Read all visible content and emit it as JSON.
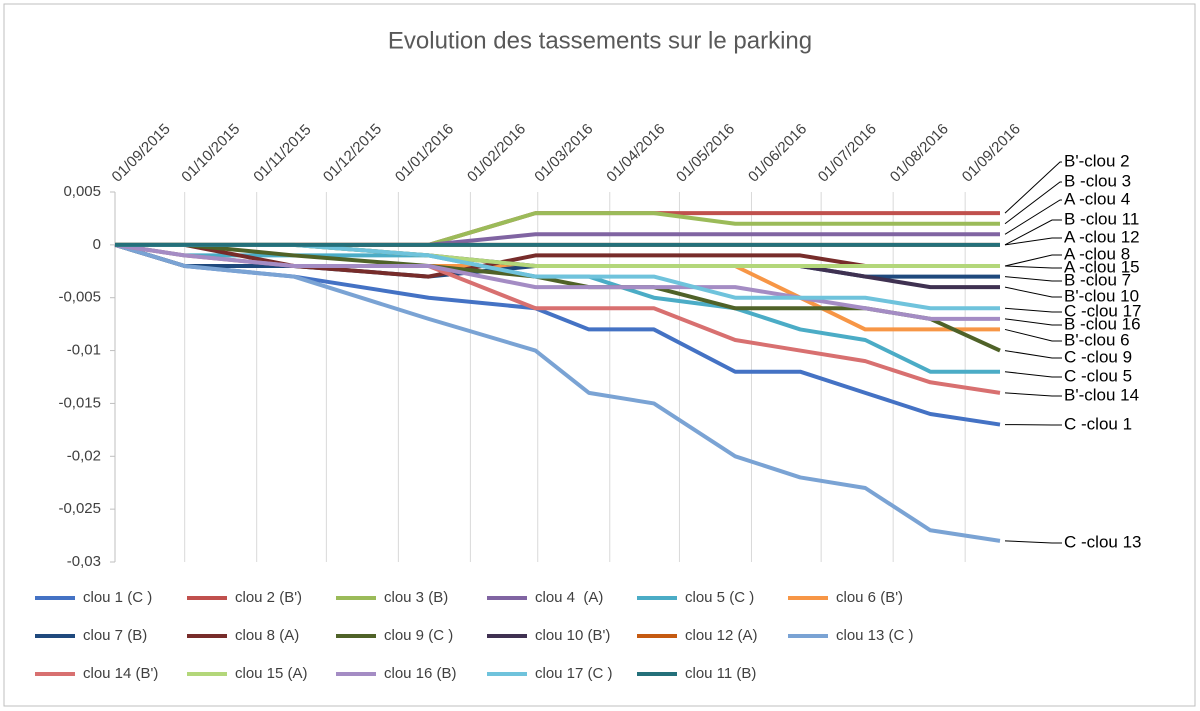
{
  "chart_data": {
    "type": "line",
    "title": "Evolution des tassements sur le parking",
    "x": [
      "2015-09-01",
      "2015-10-01",
      "2015-11-17",
      "2016-01-14",
      "2016-02-29",
      "2016-03-23",
      "2016-04-20",
      "2016-05-25",
      "2016-06-22",
      "2016-07-20",
      "2016-08-17",
      "2016-09-16"
    ],
    "xlim": [
      "2015-09-01",
      "2016-09-16"
    ],
    "xticks": [
      {
        "value": "2015-09-01",
        "label": "01/09/2015"
      },
      {
        "value": "2015-10-01",
        "label": "01/10/2015"
      },
      {
        "value": "2015-11-01",
        "label": "01/11/2015"
      },
      {
        "value": "2015-12-01",
        "label": "01/12/2015"
      },
      {
        "value": "2016-01-01",
        "label": "01/01/2016"
      },
      {
        "value": "2016-02-01",
        "label": "01/02/2016"
      },
      {
        "value": "2016-03-01",
        "label": "01/03/2016"
      },
      {
        "value": "2016-04-01",
        "label": "01/04/2016"
      },
      {
        "value": "2016-05-01",
        "label": "01/05/2016"
      },
      {
        "value": "2016-06-01",
        "label": "01/06/2016"
      },
      {
        "value": "2016-07-01",
        "label": "01/07/2016"
      },
      {
        "value": "2016-08-01",
        "label": "01/08/2016"
      },
      {
        "value": "2016-09-01",
        "label": "01/09/2016"
      }
    ],
    "ylim": [
      -0.03,
      0.005
    ],
    "yticks": [
      {
        "value": 0.005,
        "label": "0,005"
      },
      0,
      {
        "value": -0.005,
        "label": "-0,005"
      },
      {
        "value": -0.01,
        "label": "-0,01"
      },
      {
        "value": -0.015,
        "label": "-0,015"
      },
      {
        "value": -0.02,
        "label": "-0,02"
      },
      {
        "value": -0.025,
        "label": "-0,025"
      },
      {
        "value": -0.03,
        "label": "-0,03"
      }
    ],
    "grid": true,
    "series": [
      {
        "name": "clou 1 (C )",
        "color": "#4472c4",
        "values": [
          0,
          -0.002,
          -0.003,
          -0.005,
          -0.006,
          -0.008,
          -0.008,
          -0.012,
          -0.012,
          -0.014,
          -0.016,
          -0.017
        ]
      },
      {
        "name": "clou 2 (B')",
        "color": "#c0504d",
        "values": [
          0,
          0,
          0,
          0,
          0.003,
          0.003,
          0.003,
          0.003,
          0.003,
          0.003,
          0.003,
          0.003
        ]
      },
      {
        "name": "clou 3 (B)",
        "color": "#9bbb59",
        "values": [
          0,
          0,
          0,
          0,
          0.003,
          0.003,
          0.003,
          0.002,
          0.002,
          0.002,
          0.002,
          0.002
        ]
      },
      {
        "name": "clou 4  (A)",
        "color": "#8064a2",
        "values": [
          0,
          0,
          0,
          0,
          0.001,
          0.001,
          0.001,
          0.001,
          0.001,
          0.001,
          0.001,
          0.001
        ]
      },
      {
        "name": "clou 5 (C )",
        "color": "#4bacc6",
        "values": [
          0,
          -0.001,
          -0.001,
          -0.001,
          -0.003,
          -0.003,
          -0.005,
          -0.006,
          -0.008,
          -0.009,
          -0.012,
          -0.012
        ]
      },
      {
        "name": "clou 6 (B')",
        "color": "#f79646",
        "values": [
          0,
          -0.002,
          -0.002,
          -0.002,
          -0.002,
          -0.002,
          -0.002,
          -0.002,
          -0.005,
          -0.008,
          -0.008,
          -0.008
        ]
      },
      {
        "name": "clou 7 (B)",
        "color": "#1f497d",
        "values": [
          0,
          -0.002,
          -0.002,
          -0.003,
          -0.002,
          -0.002,
          -0.002,
          -0.002,
          -0.002,
          -0.003,
          -0.003,
          -0.003
        ]
      },
      {
        "name": "clou 8 (A)",
        "color": "#772c2a",
        "values": [
          0,
          0,
          -0.002,
          -0.003,
          -0.001,
          -0.001,
          -0.001,
          -0.001,
          -0.001,
          -0.002,
          -0.002,
          -0.002
        ]
      },
      {
        "name": "clou 9 (C )",
        "color": "#4f6228",
        "values": [
          0,
          0,
          -0.001,
          -0.002,
          -0.003,
          -0.004,
          -0.004,
          -0.006,
          -0.006,
          -0.006,
          -0.007,
          -0.01
        ]
      },
      {
        "name": "clou 10 (B')",
        "color": "#3f3151",
        "values": [
          0,
          0,
          0,
          -0.001,
          -0.002,
          -0.002,
          -0.002,
          -0.002,
          -0.002,
          -0.003,
          -0.004,
          -0.004
        ]
      },
      {
        "name": "clou 12 (A)",
        "color": "#c55a11",
        "values": [
          0,
          0,
          0,
          0,
          0,
          0,
          0,
          0,
          0,
          0,
          0,
          0
        ]
      },
      {
        "name": "clou 13 (C )",
        "color": "#7aa3d4",
        "values": [
          0,
          -0.002,
          -0.003,
          -0.007,
          -0.01,
          -0.014,
          -0.015,
          -0.02,
          -0.022,
          -0.023,
          -0.027,
          -0.028
        ]
      },
      {
        "name": "clou 14 (B')",
        "color": "#d87070",
        "values": [
          0,
          -0.001,
          -0.002,
          -0.002,
          -0.006,
          -0.006,
          -0.006,
          -0.009,
          -0.01,
          -0.011,
          -0.013,
          -0.014
        ]
      },
      {
        "name": "clou 15 (A)",
        "color": "#b3d77a",
        "values": [
          0,
          0,
          0,
          -0.001,
          -0.002,
          -0.002,
          -0.002,
          -0.002,
          -0.002,
          -0.002,
          -0.002,
          -0.002
        ]
      },
      {
        "name": "clou 16 (B)",
        "color": "#a48cc4",
        "values": [
          0,
          -0.001,
          -0.002,
          -0.002,
          -0.004,
          -0.004,
          -0.004,
          -0.004,
          -0.005,
          -0.006,
          -0.007,
          -0.007
        ]
      },
      {
        "name": "clou 17 (C )",
        "color": "#6fc3dc",
        "values": [
          0,
          0,
          0,
          -0.001,
          -0.003,
          -0.003,
          -0.003,
          -0.005,
          -0.005,
          -0.005,
          -0.006,
          -0.006
        ]
      },
      {
        "name": "clou 11 (B)",
        "color": "#24707a",
        "values": [
          0,
          0,
          0,
          0,
          0,
          0,
          0,
          0,
          0,
          0,
          0,
          0
        ]
      }
    ],
    "annotations": [
      "B'-clou 2",
      "B -clou 3",
      "A -clou 4",
      "B -clou 11",
      "A -clou 12",
      "A -clou 8",
      "A -clou 15",
      "B -clou 7",
      "B'-clou 10",
      "C -clou 17",
      "B -clou 16",
      "B'-clou 6",
      "C -clou 9",
      "C -clou 5",
      "B'-clou 14",
      "C -clou 1",
      "C -clou 13"
    ]
  }
}
